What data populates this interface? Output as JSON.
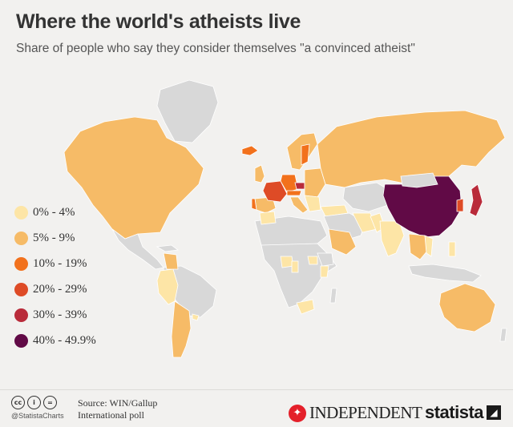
{
  "header": {
    "title": "Where the world's atheists live",
    "subtitle": "Share of people who say they consider themselves \"a convinced atheist\""
  },
  "colors": {
    "no_data": "#d8d8d8",
    "band_0_4": "#fde5a6",
    "band_5_9": "#f6bb67",
    "band_10_19": "#f2711c",
    "band_20_29": "#de4b26",
    "band_30_39": "#b92b3a",
    "band_40_49": "#610a46",
    "background": "#f2f1ef"
  },
  "legend": [
    {
      "label": "0% - 4%",
      "color": "#fde5a6"
    },
    {
      "label": "5% - 9%",
      "color": "#f6bb67"
    },
    {
      "label": "10% - 19%",
      "color": "#f2711c"
    },
    {
      "label": "20% - 29%",
      "color": "#de4b26"
    },
    {
      "label": "30% - 39%",
      "color": "#b92b3a"
    },
    {
      "label": "40% - 49.9%",
      "color": "#610a46"
    }
  ],
  "footer": {
    "cc_icons": [
      "cc-icon",
      "by-icon",
      "nd-icon"
    ],
    "handle": "@StatistaCharts",
    "source_line1": "Source: WIN/Gallup",
    "source_line2": "International poll",
    "publisher": "INDEPENDENT",
    "brand": "statista"
  }
}
